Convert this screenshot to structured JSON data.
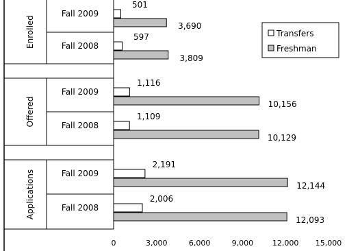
{
  "chart_data": {
    "type": "bar",
    "orientation": "horizontal",
    "title": "",
    "xlabel": "",
    "ylabel": "",
    "xlim": [
      0,
      15000
    ],
    "x_ticks": [
      "0",
      "3,000",
      "6,000",
      "9,000",
      "12,000",
      "15,000"
    ],
    "grid": false,
    "legend_position": "top-right",
    "groups": [
      {
        "label": "Enrolled",
        "rows": [
          {
            "label": "Fall 2009",
            "values": [
              501,
              3690
            ],
            "labels": [
              "501",
              "3,690"
            ]
          },
          {
            "label": "Fall 2008",
            "values": [
              597,
              3809
            ],
            "labels": [
              "597",
              "3,809"
            ]
          }
        ]
      },
      {
        "label": "Offered",
        "rows": [
          {
            "label": "Fall 2009",
            "values": [
              1116,
              10156
            ],
            "labels": [
              "1,116",
              "10,156"
            ]
          },
          {
            "label": "Fall 2008",
            "values": [
              1109,
              10129
            ],
            "labels": [
              "1,109",
              "10,129"
            ]
          }
        ]
      },
      {
        "label": "Applications",
        "rows": [
          {
            "label": "Fall 2009",
            "values": [
              2191,
              12144
            ],
            "labels": [
              "2,191",
              "12,144"
            ]
          },
          {
            "label": "Fall 2008",
            "values": [
              2006,
              12093
            ],
            "labels": [
              "2,006",
              "12,093"
            ]
          }
        ]
      }
    ],
    "series": [
      {
        "name": "Transfers",
        "color": "#ffffff"
      },
      {
        "name": "Freshman",
        "color": "#c0c0c0"
      }
    ]
  }
}
